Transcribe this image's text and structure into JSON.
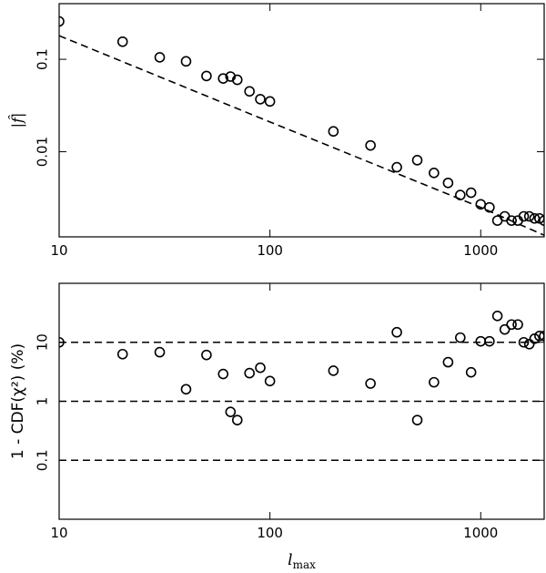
{
  "chart_data": [
    {
      "type": "scatter",
      "ylabel": "|f̂|",
      "xscale": "log",
      "yscale": "log",
      "xlim": [
        10,
        2000
      ],
      "ylim": [
        0.0012,
        0.4
      ],
      "xticks": [
        10,
        100,
        1000
      ],
      "yticks": [
        0.01,
        0.1
      ],
      "x": [
        10,
        20,
        30,
        40,
        50,
        60,
        65,
        70,
        80,
        90,
        100,
        200,
        300,
        400,
        500,
        600,
        700,
        800,
        900,
        1000,
        1100,
        1200,
        1300,
        1400,
        1500,
        1600,
        1700,
        1800,
        1900,
        2000
      ],
      "values": [
        0.257,
        0.155,
        0.105,
        0.095,
        0.066,
        0.062,
        0.065,
        0.06,
        0.045,
        0.037,
        0.035,
        0.0166,
        0.0117,
        0.0068,
        0.0081,
        0.0059,
        0.0046,
        0.0034,
        0.0036,
        0.0027,
        0.0025,
        0.0018,
        0.002,
        0.0018,
        0.0018,
        0.002,
        0.002,
        0.0019,
        0.0019,
        0.0018
      ],
      "color": "#000000",
      "line": {
        "x": [
          10,
          100,
          1000,
          2000
        ],
        "values": [
          0.18,
          0.021,
          0.0025,
          0.00125
        ]
      }
    },
    {
      "type": "scatter",
      "ylabel": "1 - CDF(χ²) (%)",
      "xlabel": "l",
      "xlabel_sub": "max",
      "xscale": "log",
      "yscale": "log",
      "xlim": [
        10,
        2000
      ],
      "ylim": [
        0.01,
        100
      ],
      "xticks": [
        10,
        100,
        1000
      ],
      "yticks": [
        0.1,
        1,
        10
      ],
      "x": [
        10,
        20,
        30,
        40,
        50,
        60,
        65,
        70,
        80,
        90,
        100,
        200,
        300,
        400,
        500,
        600,
        700,
        800,
        900,
        1000,
        1100,
        1200,
        1300,
        1400,
        1500,
        1600,
        1700,
        1800,
        1900,
        2000
      ],
      "values": [
        10,
        6.3,
        6.8,
        1.6,
        6.1,
        2.9,
        0.66,
        0.48,
        3.0,
        3.7,
        2.2,
        3.3,
        2.0,
        14.8,
        0.48,
        2.1,
        4.6,
        12,
        3.1,
        10.4,
        10.4,
        28,
        16.5,
        20,
        20,
        10,
        9.3,
        11.5,
        12.8,
        12.8
      ],
      "color": "#000000",
      "hlines": [
        0.1,
        1,
        10
      ]
    }
  ]
}
